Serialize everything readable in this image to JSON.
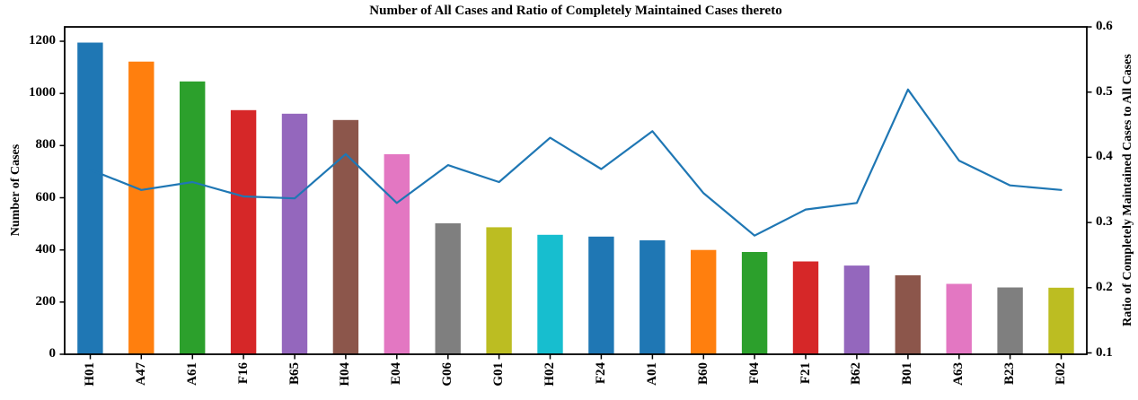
{
  "chart_data": {
    "type": "combo-bar-line",
    "title": "Number of All Cases and Ratio of Completely Maintained Cases thereto",
    "categories": [
      "H01",
      "A47",
      "A61",
      "F16",
      "B65",
      "H04",
      "E04",
      "G06",
      "G01",
      "H02",
      "F24",
      "A01",
      "B60",
      "F04",
      "F21",
      "B62",
      "B01",
      "A63",
      "B23",
      "E02"
    ],
    "series": [
      {
        "name": "Number of All Cases",
        "type": "bar",
        "axis": "left",
        "values": [
          1195,
          1122,
          1046,
          936,
          922,
          898,
          767,
          502,
          487,
          458,
          451,
          437,
          400,
          392,
          356,
          340,
          303,
          270,
          256,
          255
        ],
        "bar_colors": [
          "#1f77b4",
          "#ff7f0e",
          "#2ca02c",
          "#d62728",
          "#9467bd",
          "#8c564b",
          "#e377c2",
          "#7f7f7f",
          "#bcbd22",
          "#17becf",
          "#1f77b4",
          "#1f77b4",
          "#ff7f0e",
          "#2ca02c",
          "#d62728",
          "#9467bd",
          "#8c564b",
          "#e377c2",
          "#7f7f7f",
          "#bcbd22"
        ]
      },
      {
        "name": "Ratio of Completely Maintained Cases to All Cases",
        "type": "line",
        "axis": "right",
        "color": "#1f77b4",
        "values": [
          0.381,
          0.35,
          0.362,
          0.34,
          0.337,
          0.405,
          0.33,
          0.388,
          0.362,
          0.43,
          0.382,
          0.44,
          0.345,
          0.28,
          0.32,
          0.33,
          0.504,
          0.395,
          0.357,
          0.35
        ]
      }
    ],
    "left_axis": {
      "label": "Number of Cases",
      "ticks": [
        0,
        200,
        400,
        600,
        800,
        1000,
        1200
      ],
      "range": [
        0,
        1255
      ]
    },
    "right_axis": {
      "label": "Ratio of Completely Maintained Cases to All Cases",
      "ticks": [
        0.1,
        0.2,
        0.3,
        0.4,
        0.5,
        0.6
      ],
      "range": [
        0.098,
        0.6
      ]
    },
    "grid": false,
    "legend": "none",
    "spine_color": "#000000",
    "background": "#ffffff"
  }
}
